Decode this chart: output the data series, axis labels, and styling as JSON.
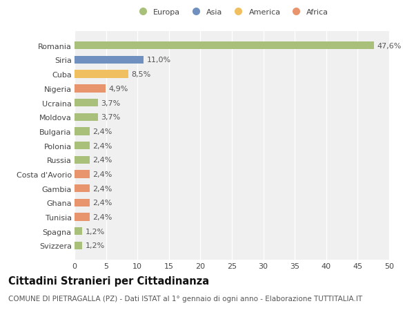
{
  "categories": [
    "Svizzera",
    "Spagna",
    "Tunisia",
    "Ghana",
    "Gambia",
    "Costa d'Avorio",
    "Russia",
    "Polonia",
    "Bulgaria",
    "Moldova",
    "Ucraina",
    "Nigeria",
    "Cuba",
    "Siria",
    "Romania"
  ],
  "values": [
    1.2,
    1.2,
    2.4,
    2.4,
    2.4,
    2.4,
    2.4,
    2.4,
    2.4,
    3.7,
    3.7,
    4.9,
    8.5,
    11.0,
    47.6
  ],
  "labels": [
    "1,2%",
    "1,2%",
    "2,4%",
    "2,4%",
    "2,4%",
    "2,4%",
    "2,4%",
    "2,4%",
    "2,4%",
    "3,7%",
    "3,7%",
    "4,9%",
    "8,5%",
    "11,0%",
    "47,6%"
  ],
  "colors": [
    "#a8c07a",
    "#a8c07a",
    "#e8956d",
    "#e8956d",
    "#e8956d",
    "#e8956d",
    "#a8c07a",
    "#a8c07a",
    "#a8c07a",
    "#a8c07a",
    "#a8c07a",
    "#e8956d",
    "#f0c060",
    "#7090c0",
    "#a8c07a"
  ],
  "legend_labels": [
    "Europa",
    "Asia",
    "America",
    "Africa"
  ],
  "legend_colors": [
    "#a8c07a",
    "#7090c0",
    "#f0c060",
    "#e8956d"
  ],
  "title": "Cittadini Stranieri per Cittadinanza",
  "subtitle": "COMUNE DI PIETRAGALLA (PZ) - Dati ISTAT al 1° gennaio di ogni anno - Elaborazione TUTTITALIA.IT",
  "xlim": [
    0,
    50
  ],
  "xticks": [
    0,
    5,
    10,
    15,
    20,
    25,
    30,
    35,
    40,
    45,
    50
  ],
  "bg_color": "#ffffff",
  "plot_bg_color": "#f0f0f0",
  "grid_color": "#ffffff",
  "bar_height": 0.55,
  "label_fontsize": 8,
  "tick_fontsize": 8,
  "title_fontsize": 10.5,
  "subtitle_fontsize": 7.5
}
